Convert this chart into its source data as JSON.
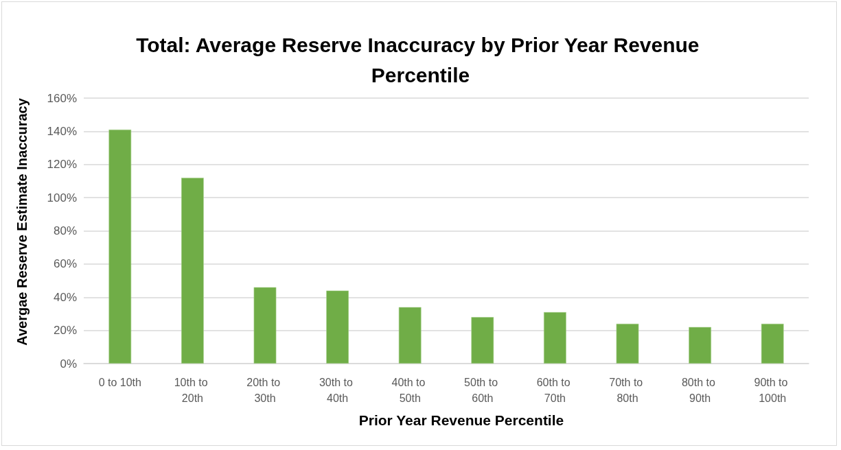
{
  "chart_data": {
    "type": "bar",
    "title": "Total: Average Reserve Inaccuracy by Prior Year Revenue Percentile",
    "xlabel": "Prior Year Revenue Percentile",
    "ylabel": "Avergae Reserve Estimate Inaccuracy",
    "categories": [
      "0 to 10th",
      "10th to 20th",
      "20th to 30th",
      "30th to 40th",
      "40th to 50th",
      "50th to 60th",
      "60th to 70th",
      "70th to 80th",
      "80th to 90th",
      "90th to 100th"
    ],
    "values": [
      141,
      112,
      46,
      44,
      34,
      28,
      31,
      24,
      22,
      24
    ],
    "color": "#70ad47",
    "ylim": [
      0,
      160
    ],
    "yticks": [
      {
        "value": 0,
        "label": "0%"
      },
      {
        "value": 20,
        "label": "20%"
      },
      {
        "value": 40,
        "label": "40%"
      },
      {
        "value": 60,
        "label": "60%"
      },
      {
        "value": 80,
        "label": "80%"
      },
      {
        "value": 100,
        "label": "100%"
      },
      {
        "value": 120,
        "label": "120%"
      },
      {
        "value": 140,
        "label": "140%"
      },
      {
        "value": 160,
        "label": "160%"
      }
    ],
    "grid": "y"
  }
}
